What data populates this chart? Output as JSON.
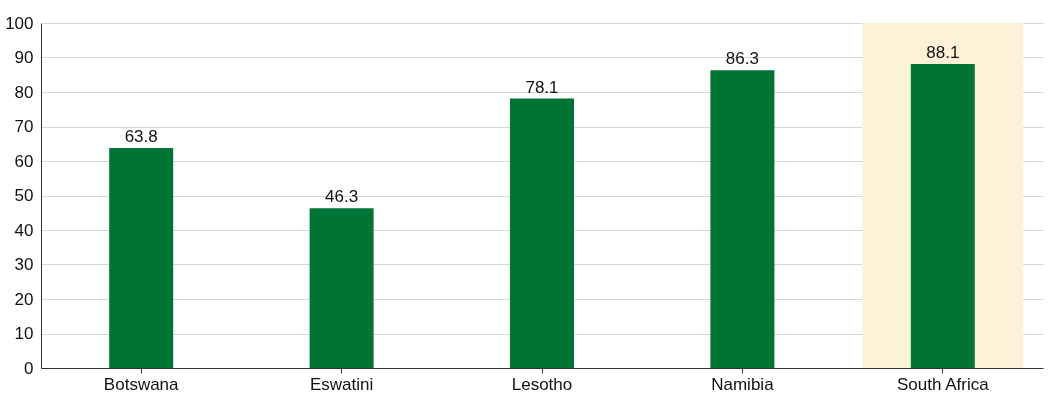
{
  "chart_data": {
    "type": "bar",
    "categories": [
      "Botswana",
      "Eswatini",
      "Lesotho",
      "Namibia",
      "South Africa"
    ],
    "values": [
      63.8,
      46.3,
      78.1,
      86.3,
      88.1
    ],
    "color": "#007434",
    "ylim": [
      0,
      100
    ],
    "yticks": [
      0,
      10,
      20,
      30,
      40,
      50,
      60,
      70,
      80,
      90,
      100
    ],
    "grid": "y",
    "data_labels": true,
    "bands": [
      {
        "axis": "x",
        "from": "South Africa",
        "to": "South Africa",
        "color": "#fdf2d8"
      }
    ]
  }
}
